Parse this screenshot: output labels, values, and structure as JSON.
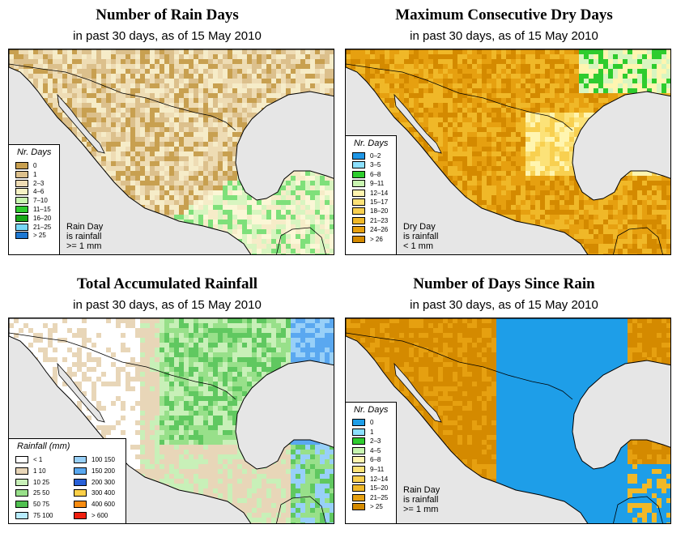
{
  "panels": [
    {
      "title": "Number of Rain Days",
      "subtitle": "in past 30 days, as of  15 May 2010",
      "legend_title": "Nr. Days",
      "note": [
        "Rain Day",
        "is rainfall",
        ">= 1 mm"
      ],
      "land_palette": [
        "#c8a050",
        "#dcc08c",
        "#eedcb4",
        "#f6ecc8",
        "#fbf7d6",
        "#d8f5c0",
        "#7ee07a"
      ],
      "classes": [
        {
          "label": "0",
          "color": "#c8a050"
        },
        {
          "label": "1",
          "color": "#dcc08c"
        },
        {
          "label": "2–3",
          "color": "#eedcb4"
        },
        {
          "label": "4–6",
          "color": "#f6f2c4"
        },
        {
          "label": "7–10",
          "color": "#c8f5b0"
        },
        {
          "label": "11–15",
          "color": "#2ecc2e"
        },
        {
          "label": "16–20",
          "color": "#18a818"
        },
        {
          "label": "21–25",
          "color": "#78d8f8"
        },
        {
          "label": "> 25",
          "color": "#1e78d2"
        }
      ]
    },
    {
      "title": "Maximum Consecutive Dry Days",
      "subtitle": "in past 30 days, as of  15 May 2010",
      "legend_title": "Nr. Days",
      "note": [
        "Dry Day",
        "is rainfall",
        "< 1 mm"
      ],
      "land_palette": [
        "#d48a00",
        "#e6a010",
        "#f0b828",
        "#f8d050",
        "#fce278",
        "#fff5b0",
        "#d8f5c0",
        "#2ecc2e"
      ],
      "classes": [
        {
          "label": "0–2",
          "color": "#1e96e6"
        },
        {
          "label": "3–5",
          "color": "#8ce0ff"
        },
        {
          "label": "6–8",
          "color": "#2ecc2e"
        },
        {
          "label": "9–11",
          "color": "#c8f5b0"
        },
        {
          "label": "12–14",
          "color": "#fff5b0"
        },
        {
          "label": "15–17",
          "color": "#fce278"
        },
        {
          "label": "18–20",
          "color": "#f8d050"
        },
        {
          "label": "21–23",
          "color": "#f0b828"
        },
        {
          "label": "24–26",
          "color": "#e6a010"
        },
        {
          "label": "> 26",
          "color": "#d48a00"
        }
      ]
    },
    {
      "title": "Total Accumulated Rainfall",
      "subtitle": "in past 30 days, as of  15 May 2010",
      "legend_title": "Rainfall (mm)",
      "land_palette": [
        "#ffffff",
        "#ffffff",
        "#e8d6b8",
        "#e8d6b8",
        "#c8f0b8",
        "#98e08a",
        "#60c860",
        "#98d0f8",
        "#5aa8f0"
      ],
      "classes": [
        {
          "label": "< 1",
          "color": "#ffffff"
        },
        {
          "label": "1  10",
          "color": "#e8d6b8"
        },
        {
          "label": "10  25",
          "color": "#c8f0b8"
        },
        {
          "label": "25  50",
          "color": "#98e08a"
        },
        {
          "label": "50  75",
          "color": "#50c050"
        },
        {
          "label": "75  100",
          "color": "#b8ecff"
        },
        {
          "label": "100  150",
          "color": "#98d0f8"
        },
        {
          "label": "150  200",
          "color": "#5aa8f0"
        },
        {
          "label": "200  300",
          "color": "#2860d8"
        },
        {
          "label": "300  400",
          "color": "#fcd048"
        },
        {
          "label": "400  600",
          "color": "#f88c10"
        },
        {
          "label": "> 600",
          "color": "#f02010"
        }
      ]
    },
    {
      "title": "Number of Days Since Rain",
      "subtitle": "in past 30 days, as of  15 May 2010",
      "legend_title": "Nr. Days",
      "note": [
        "Rain Day",
        "is rainfall",
        ">= 1 mm"
      ],
      "land_palette": [
        "#d48a00",
        "#d48a00",
        "#e6a010",
        "#f0b828",
        "#1e9ee8",
        "#1e9ee8",
        "#1e9ee8",
        "#fff5b0",
        "#2ecc2e"
      ],
      "classes": [
        {
          "label": "0",
          "color": "#1e9ee8"
        },
        {
          "label": "1",
          "color": "#8ce0ff"
        },
        {
          "label": "2–3",
          "color": "#2ecc2e"
        },
        {
          "label": "4–5",
          "color": "#c8f5b0"
        },
        {
          "label": "6–8",
          "color": "#fff5b0"
        },
        {
          "label": "9–11",
          "color": "#fce278"
        },
        {
          "label": "12–14",
          "color": "#f8d050"
        },
        {
          "label": "15–20",
          "color": "#f0b828"
        },
        {
          "label": "21–25",
          "color": "#e6a010"
        },
        {
          "label": "> 25",
          "color": "#d48a00"
        }
      ]
    }
  ],
  "colors": {
    "ocean": "#e6e6e6",
    "border": "#000000"
  }
}
